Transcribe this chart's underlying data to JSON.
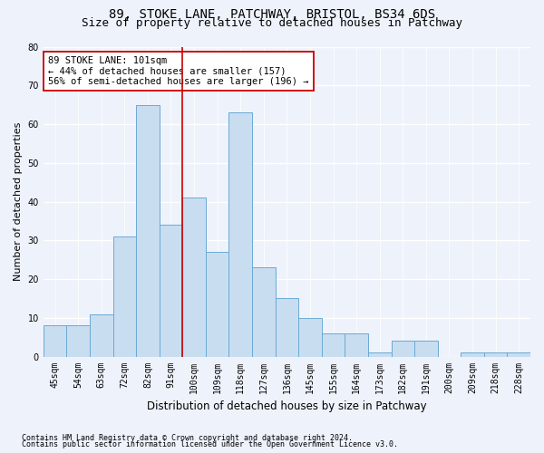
{
  "title1": "89, STOKE LANE, PATCHWAY, BRISTOL, BS34 6DS",
  "title2": "Size of property relative to detached houses in Patchway",
  "xlabel": "Distribution of detached houses by size in Patchway",
  "ylabel": "Number of detached properties",
  "footnote1": "Contains HM Land Registry data © Crown copyright and database right 2024.",
  "footnote2": "Contains public sector information licensed under the Open Government Licence v3.0.",
  "categories": [
    "45sqm",
    "54sqm",
    "63sqm",
    "72sqm",
    "82sqm",
    "91sqm",
    "100sqm",
    "109sqm",
    "118sqm",
    "127sqm",
    "136sqm",
    "145sqm",
    "155sqm",
    "164sqm",
    "173sqm",
    "182sqm",
    "191sqm",
    "200sqm",
    "209sqm",
    "218sqm",
    "228sqm"
  ],
  "values": [
    8,
    8,
    11,
    31,
    65,
    34,
    41,
    27,
    63,
    23,
    15,
    10,
    6,
    6,
    1,
    4,
    4,
    0,
    1,
    1,
    1
  ],
  "bar_color": "#c9ddf0",
  "bar_edge_color": "#6aaad4",
  "vline_x_idx": 6,
  "vline_color": "#cc0000",
  "annotation_line1": "89 STOKE LANE: 101sqm",
  "annotation_line2": "← 44% of detached houses are smaller (157)",
  "annotation_line3": "56% of semi-detached houses are larger (196) →",
  "annotation_box_color": "#ffffff",
  "annotation_box_edge_color": "#cc0000",
  "ylim": [
    0,
    80
  ],
  "yticks": [
    0,
    10,
    20,
    30,
    40,
    50,
    60,
    70,
    80
  ],
  "bg_color": "#eef2fb",
  "plot_bg_color": "#eef2fb",
  "grid_color": "#ffffff",
  "title1_fontsize": 10,
  "title2_fontsize": 9,
  "xlabel_fontsize": 8.5,
  "ylabel_fontsize": 8,
  "tick_fontsize": 7,
  "annot_fontsize": 7.5,
  "footnote_fontsize": 6
}
